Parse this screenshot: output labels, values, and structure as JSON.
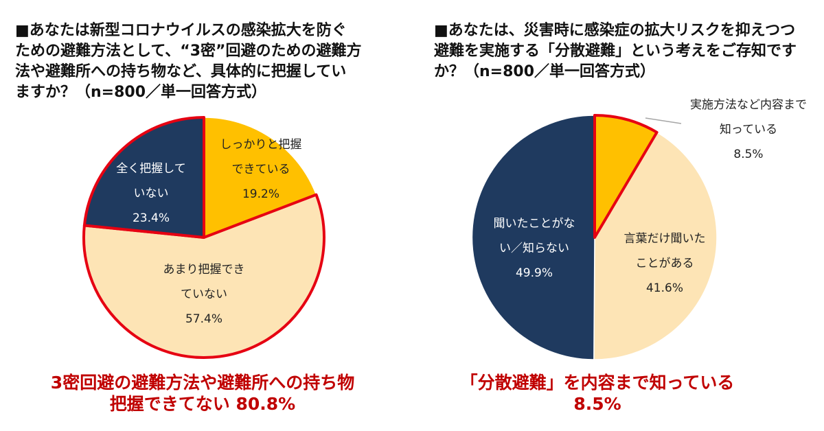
{
  "colors": {
    "navy": "#1f3a5f",
    "yellow": "#ffc000",
    "cream": "#fde4b5",
    "outline": "#e60012",
    "caption": "#c00000"
  },
  "charts": [
    {
      "title": "■あなたは新型コロナウイルスの感染拡大を防ぐ\nための避難方法として、“3密”回避のための避難方\n法や避難所への持ち物など、具体的に把握してい\nますか？（n=800／単一回答方式）",
      "caption": "3密回避の避難方法や避難所への持ち物\n把握できてない 80.8%"
    },
    {
      "title": "■あなたは、災害時に感染症の拡大リスクを抑えつつ\n避難を実施する「分散避難」という考えをご存知です\nか？（n=800／単一回答方式）",
      "caption": "「分散避難」を内容まで知っている\n8.5%"
    }
  ],
  "chart_data": [
    {
      "type": "pie",
      "slices": [
        {
          "label_lines": [
            "しっかりと把握",
            "できている"
          ],
          "pct": "19.2%",
          "value": 19.2,
          "color": "#ffc000",
          "highlight": false
        },
        {
          "label_lines": [
            "あまり把握でき",
            "ていない"
          ],
          "pct": "57.4%",
          "value": 57.4,
          "color": "#fde4b5",
          "highlight": true
        },
        {
          "label_lines": [
            "全く把握して",
            "いない"
          ],
          "pct": "23.4%",
          "value": 23.4,
          "color": "#1f3a5f",
          "highlight": true
        }
      ]
    },
    {
      "type": "pie",
      "slices": [
        {
          "label_lines": [
            "実施方法など内容まで",
            "知っている"
          ],
          "pct": "8.5%",
          "value": 8.5,
          "color": "#ffc000",
          "highlight": true
        },
        {
          "label_lines": [
            "言葉だけ聞いた",
            "ことがある"
          ],
          "pct": "41.6%",
          "value": 41.6,
          "color": "#fde4b5",
          "highlight": false
        },
        {
          "label_lines": [
            "聞いたことがな",
            "い／知らない"
          ],
          "pct": "49.9%",
          "value": 49.9,
          "color": "#1f3a5f",
          "highlight": false
        }
      ]
    }
  ]
}
